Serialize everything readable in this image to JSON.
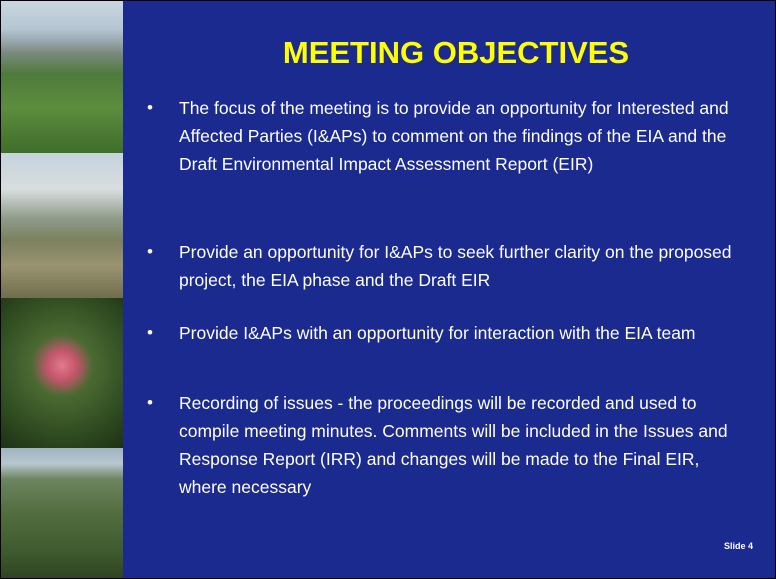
{
  "slide": {
    "title": "MEETING OBJECTIVES",
    "bullets": [
      "The focus of the meeting is to provide an opportunity for Interested and Affected Parties (I&APs) to comment on the findings of the EIA and the Draft Environmental Impact Assessment Report (EIR)",
      "Provide an opportunity for I&APs to seek further clarity on the proposed project, the EIA phase and the Draft EIR",
      "Provide I&APs with an opportunity for interaction with the EIA team",
      "Recording of issues - the proceedings will be recorded and used to compile meeting minutes. Comments will be included in the Issues and Response Report (IRR) and changes will be made to the Final EIR, where necessary"
    ],
    "footer": "Slide 4"
  }
}
